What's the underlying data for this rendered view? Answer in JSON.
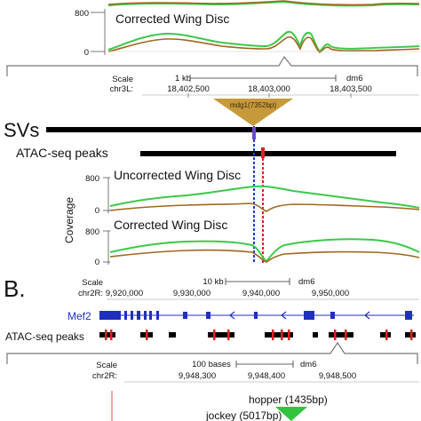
{
  "panel_a": {
    "top_axis": {
      "tick_top": "800",
      "tick_bottom": "0"
    },
    "top_track_title": "Corrected Wing Disc",
    "browser": {
      "scale_label": "Scale",
      "chrom_label": "chr3L:",
      "scale_bar_text": "1 kb",
      "assembly": "dm6",
      "coords": [
        "18,402,500",
        "18,403,000",
        "18,403,500"
      ]
    },
    "insertion_label": "mdg1(7352bp)",
    "svs_label": "SVs",
    "atac_label": "ATAC-seq peaks",
    "coverage_label": "Coverage",
    "uncorrected_title": "Uncorrected Wing Disc",
    "uncorrected_ticks": [
      "800",
      "0"
    ],
    "corrected_title": "Corrected Wing Disc",
    "corrected_ticks": [
      "800",
      "0"
    ],
    "colors": {
      "green": "#3cc84a",
      "brown": "#a0661e",
      "gold": "#c69a3a",
      "blue": "#1f3fbf",
      "red": "#e0211c"
    }
  },
  "panel_b": {
    "panel_letter": "B.",
    "browser": {
      "scale_label": "Scale",
      "chrom_label": "chr2R:",
      "scale_bar_text": "10 kb",
      "assembly": "dm6",
      "coords": [
        "9,920,000",
        "9,930,000",
        "9,940,000",
        "9,950,000"
      ]
    },
    "gene_label": "Mef2",
    "atac_label": "ATAC-seq peaks",
    "zoom_browser": {
      "scale_label": "Scale",
      "chrom_label": "chr2R:",
      "scale_bar_text": "100 bases",
      "assembly": "dm6",
      "coords": [
        "9,948,300",
        "9,948,400",
        "9,948,500"
      ]
    },
    "insertion_labels": [
      "hopper (1435bp)",
      "jockey (5017bp)"
    ],
    "colors": {
      "gene": "#1f2fc0",
      "green": "#33c43f"
    }
  }
}
